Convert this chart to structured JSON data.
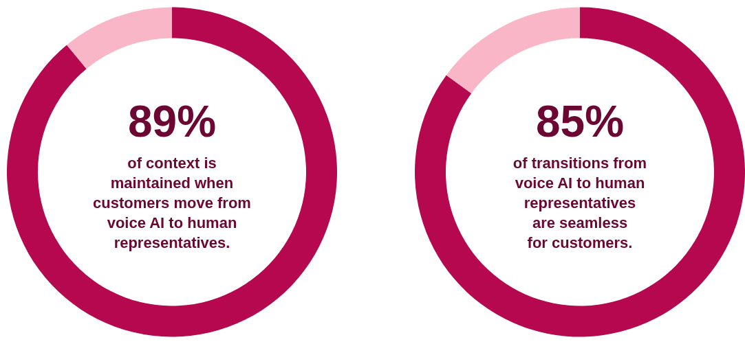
{
  "chart_data": [
    {
      "type": "donut",
      "categories": [
        null,
        null
      ],
      "values": [
        89,
        11
      ],
      "colors": [
        "#b5084f",
        "#f8b6c6"
      ],
      "value_labels": [
        "89%",
        null
      ],
      "annotations": [
        "of context is\nmaintained when\ncustomers move from\nvoice AI to human\nrepresentatives."
      ]
    },
    {
      "type": "donut",
      "categories": [
        null,
        null
      ],
      "values": [
        85,
        15
      ],
      "colors": [
        "#b5084f",
        "#f8b6c6"
      ],
      "value_labels": [
        "85%",
        null
      ],
      "annotations": [
        "of transitions from\nvoice AI to human\nrepresentatives\nare seamless\nfor customers."
      ]
    }
  ]
}
